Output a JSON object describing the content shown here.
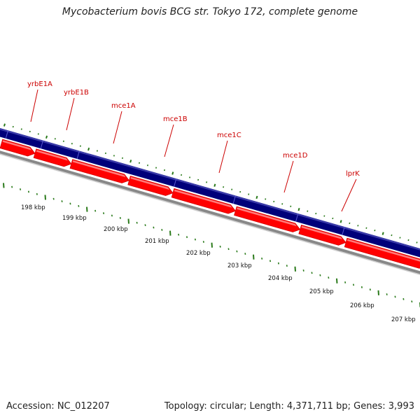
{
  "title": "Mycobacterium bovis BCG str. Tokyo 172, complete genome",
  "accession": "Accession: NC_012207",
  "topology": "Topology: circular; Length: 4,371,711 bp; Genes: 3,993",
  "colors": {
    "forward_track": "#00007a",
    "gene_arrows": "#ff0000",
    "backbone": "#888888",
    "tick_marks": "#2a7a1a",
    "label_text": "#cc0000"
  },
  "gene_labels": [
    "yrbE1A",
    "yrbE1B",
    "mce1A",
    "mce1B",
    "mce1C",
    "mce1D",
    "lprK"
  ],
  "scale_labels": [
    "198 kbp",
    "199 kbp",
    "200 kbp",
    "201 kbp",
    "202 kbp",
    "203 kbp",
    "204 kbp",
    "205 kbp",
    "206 kbp",
    "207 kbp"
  ]
}
